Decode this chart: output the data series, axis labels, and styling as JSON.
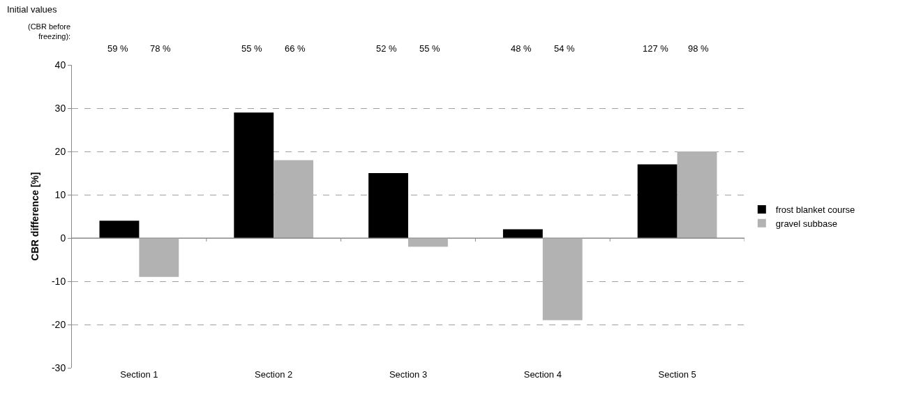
{
  "chart_data": {
    "type": "bar",
    "ylabel": "CBR difference [%]",
    "categories": [
      "Section 1",
      "Section 2",
      "Section 3",
      "Section 4",
      "Section 5"
    ],
    "series": [
      {
        "name": "frost blanket course",
        "color": "#000000",
        "values": [
          4,
          29,
          15,
          2,
          17
        ]
      },
      {
        "name": "gravel subbase",
        "color": "#b2b2b2",
        "values": [
          -9,
          18,
          -2,
          -19,
          20
        ]
      }
    ],
    "ylim": [
      -30,
      40
    ],
    "yticks": [
      -30,
      -20,
      -10,
      0,
      10,
      20,
      30,
      40
    ],
    "grid": "y",
    "legend": "right",
    "annotations": [
      "Initial values",
      "(CBR before freezing):",
      "59 %",
      "78 %",
      "55 %",
      "66 %",
      "52 %",
      "55 %",
      "48 %",
      "54 %",
      "127 %",
      "98 %"
    ]
  }
}
